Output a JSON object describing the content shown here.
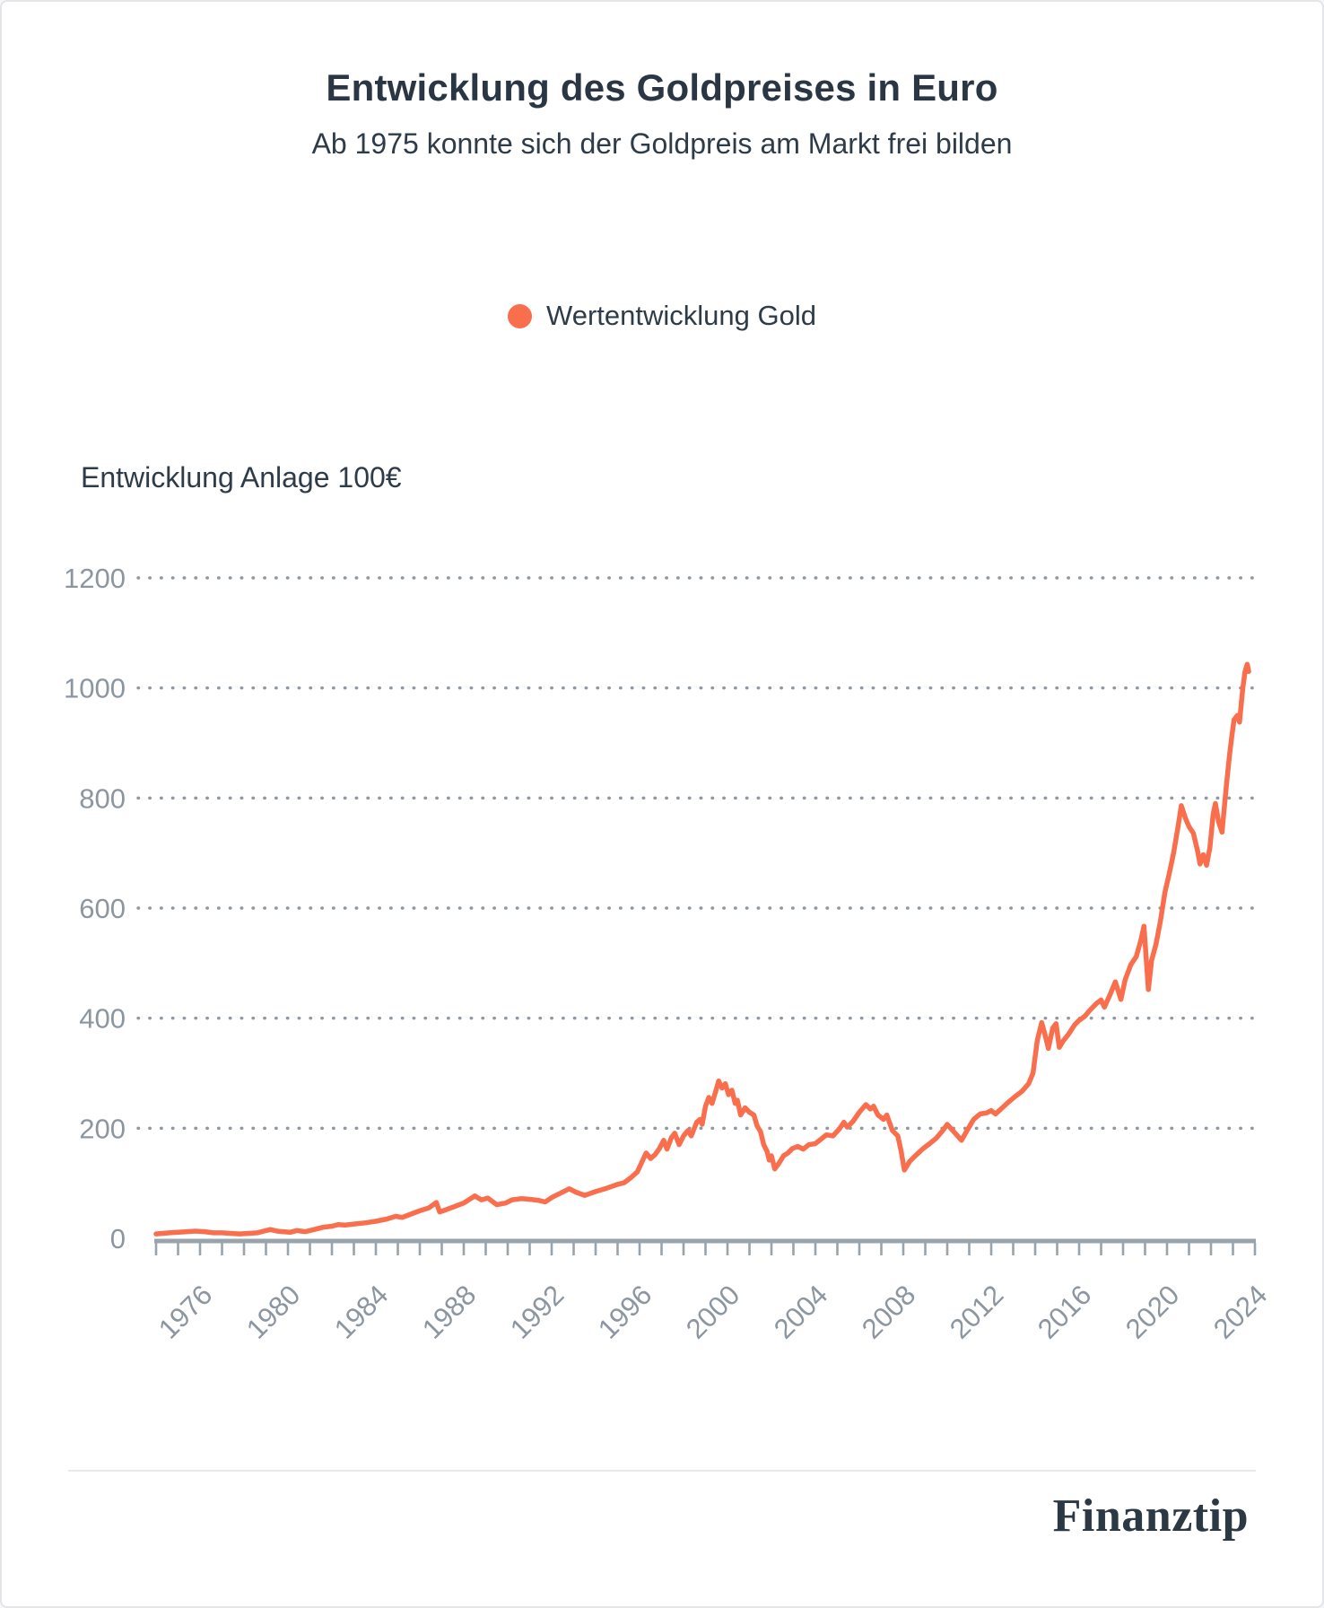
{
  "page": {
    "background": "#ffffff",
    "border_color": "#e3e5e8"
  },
  "header": {
    "title": "Entwicklung des Goldpreises in Euro",
    "subtitle": "Ab 1975 konnte sich der Goldpreis am Markt frei bilden"
  },
  "legend": {
    "items": [
      {
        "label": "Wertentwicklung Gold",
        "color": "#F96E4C"
      }
    ]
  },
  "footer": {
    "brand": "Finanztip"
  },
  "chart_data": {
    "type": "line",
    "title": "Entwicklung des Goldpreises in Euro",
    "subtitle": "Ab 1975 konnte sich der Goldpreis am Markt frei bilden",
    "ylabel": "Entwicklung Anlage 100€",
    "xlabel": "",
    "legend_entries": [
      "Wertentwicklung Gold"
    ],
    "legend_position": "top-center",
    "grid": "horizontal-dotted",
    "line_color": "#F96E4C",
    "grid_color": "#8e98a2",
    "axis_color": "#99a3ac",
    "tick_label_color": "#8c96a1",
    "ylim": [
      0,
      1200
    ],
    "xlim": [
      1975,
      2025
    ],
    "y_ticks": [
      0,
      200,
      400,
      600,
      800,
      1000,
      1200
    ],
    "x_ticks": [
      1976,
      1980,
      1984,
      1988,
      1992,
      1996,
      2000,
      2004,
      2008,
      2012,
      2016,
      2020,
      2024
    ],
    "x_minor_tick_years": [
      1975,
      2025,
      1
    ],
    "series": [
      {
        "name": "Wertentwicklung Gold",
        "points": [
          [
            1975.0,
            8
          ],
          [
            1975.3,
            9
          ],
          [
            1975.6,
            10
          ],
          [
            1976.0,
            11
          ],
          [
            1976.4,
            12
          ],
          [
            1976.8,
            13
          ],
          [
            1977.2,
            12
          ],
          [
            1977.6,
            10
          ],
          [
            1978.0,
            10
          ],
          [
            1978.4,
            9
          ],
          [
            1978.8,
            8
          ],
          [
            1979.2,
            9
          ],
          [
            1979.6,
            10
          ],
          [
            1979.9,
            13
          ],
          [
            1980.2,
            16
          ],
          [
            1980.5,
            13
          ],
          [
            1980.8,
            12
          ],
          [
            1981.1,
            11
          ],
          [
            1981.4,
            14
          ],
          [
            1981.8,
            12
          ],
          [
            1982.2,
            16
          ],
          [
            1982.6,
            20
          ],
          [
            1983.0,
            22
          ],
          [
            1983.3,
            25
          ],
          [
            1983.6,
            24
          ],
          [
            1984.0,
            26
          ],
          [
            1984.5,
            28
          ],
          [
            1985.0,
            31
          ],
          [
            1985.5,
            35
          ],
          [
            1985.9,
            40
          ],
          [
            1986.2,
            38
          ],
          [
            1986.6,
            44
          ],
          [
            1987.0,
            50
          ],
          [
            1987.4,
            55
          ],
          [
            1987.75,
            65
          ],
          [
            1987.9,
            48
          ],
          [
            1988.2,
            52
          ],
          [
            1988.6,
            58
          ],
          [
            1989.0,
            64
          ],
          [
            1989.5,
            77
          ],
          [
            1989.8,
            70
          ],
          [
            1990.1,
            73
          ],
          [
            1990.5,
            61
          ],
          [
            1990.9,
            64
          ],
          [
            1991.2,
            70
          ],
          [
            1991.6,
            72
          ],
          [
            1992.0,
            71
          ],
          [
            1992.4,
            69
          ],
          [
            1992.7,
            66
          ],
          [
            1993.0,
            74
          ],
          [
            1993.4,
            82
          ],
          [
            1993.8,
            90
          ],
          [
            1994.1,
            84
          ],
          [
            1994.5,
            78
          ],
          [
            1995.0,
            85
          ],
          [
            1995.5,
            91
          ],
          [
            1996.0,
            98
          ],
          [
            1996.3,
            101
          ],
          [
            1996.6,
            110
          ],
          [
            1996.9,
            121
          ],
          [
            1997.1,
            138
          ],
          [
            1997.3,
            155
          ],
          [
            1997.5,
            145
          ],
          [
            1997.7,
            152
          ],
          [
            1997.9,
            163
          ],
          [
            1998.1,
            178
          ],
          [
            1998.25,
            162
          ],
          [
            1998.45,
            183
          ],
          [
            1998.6,
            191
          ],
          [
            1998.8,
            170
          ],
          [
            1999.0,
            186
          ],
          [
            1999.2,
            196
          ],
          [
            1999.35,
            186
          ],
          [
            1999.6,
            211
          ],
          [
            1999.75,
            216
          ],
          [
            1999.85,
            207
          ],
          [
            2000.0,
            240
          ],
          [
            2000.15,
            256
          ],
          [
            2000.3,
            245
          ],
          [
            2000.45,
            265
          ],
          [
            2000.6,
            286
          ],
          [
            2000.75,
            273
          ],
          [
            2000.9,
            281
          ],
          [
            2001.05,
            261
          ],
          [
            2001.2,
            269
          ],
          [
            2001.35,
            245
          ],
          [
            2001.45,
            251
          ],
          [
            2001.6,
            224
          ],
          [
            2001.8,
            237
          ],
          [
            2002.0,
            229
          ],
          [
            2002.2,
            224
          ],
          [
            2002.35,
            204
          ],
          [
            2002.5,
            194
          ],
          [
            2002.65,
            170
          ],
          [
            2002.8,
            158
          ],
          [
            2002.9,
            142
          ],
          [
            2003.0,
            150
          ],
          [
            2003.15,
            126
          ],
          [
            2003.35,
            137
          ],
          [
            2003.55,
            150
          ],
          [
            2003.75,
            155
          ],
          [
            2003.95,
            163
          ],
          [
            2004.2,
            167
          ],
          [
            2004.45,
            162
          ],
          [
            2004.7,
            170
          ],
          [
            2005.0,
            172
          ],
          [
            2005.25,
            180
          ],
          [
            2005.5,
            188
          ],
          [
            2005.8,
            186
          ],
          [
            2006.1,
            199
          ],
          [
            2006.3,
            211
          ],
          [
            2006.45,
            202
          ],
          [
            2006.7,
            212
          ],
          [
            2007.0,
            229
          ],
          [
            2007.3,
            243
          ],
          [
            2007.5,
            235
          ],
          [
            2007.65,
            240
          ],
          [
            2007.85,
            224
          ],
          [
            2008.1,
            216
          ],
          [
            2008.25,
            224
          ],
          [
            2008.5,
            196
          ],
          [
            2008.75,
            186
          ],
          [
            2008.9,
            158
          ],
          [
            2009.05,
            124
          ],
          [
            2009.3,
            140
          ],
          [
            2009.6,
            152
          ],
          [
            2009.9,
            163
          ],
          [
            2010.2,
            172
          ],
          [
            2010.5,
            182
          ],
          [
            2010.8,
            196
          ],
          [
            2011.0,
            207
          ],
          [
            2011.2,
            198
          ],
          [
            2011.45,
            187
          ],
          [
            2011.65,
            178
          ],
          [
            2011.9,
            196
          ],
          [
            2012.2,
            216
          ],
          [
            2012.5,
            226
          ],
          [
            2012.8,
            228
          ],
          [
            2013.0,
            232
          ],
          [
            2013.2,
            226
          ],
          [
            2013.5,
            237
          ],
          [
            2013.8,
            248
          ],
          [
            2014.1,
            258
          ],
          [
            2014.4,
            267
          ],
          [
            2014.7,
            281
          ],
          [
            2014.9,
            300
          ],
          [
            2015.1,
            360
          ],
          [
            2015.3,
            392
          ],
          [
            2015.45,
            370
          ],
          [
            2015.6,
            345
          ],
          [
            2015.8,
            382
          ],
          [
            2015.95,
            390
          ],
          [
            2016.1,
            347
          ],
          [
            2016.3,
            360
          ],
          [
            2016.5,
            370
          ],
          [
            2016.8,
            388
          ],
          [
            2017.0,
            396
          ],
          [
            2017.25,
            403
          ],
          [
            2017.5,
            415
          ],
          [
            2017.8,
            427
          ],
          [
            2018.0,
            433
          ],
          [
            2018.15,
            420
          ],
          [
            2018.4,
            442
          ],
          [
            2018.65,
            466
          ],
          [
            2018.9,
            434
          ],
          [
            2019.1,
            470
          ],
          [
            2019.35,
            497
          ],
          [
            2019.6,
            512
          ],
          [
            2019.8,
            540
          ],
          [
            2019.95,
            567
          ],
          [
            2020.15,
            452
          ],
          [
            2020.3,
            505
          ],
          [
            2020.5,
            535
          ],
          [
            2020.7,
            577
          ],
          [
            2020.9,
            628
          ],
          [
            2021.1,
            662
          ],
          [
            2021.3,
            700
          ],
          [
            2021.5,
            748
          ],
          [
            2021.65,
            786
          ],
          [
            2021.85,
            762
          ],
          [
            2022.0,
            748
          ],
          [
            2022.2,
            736
          ],
          [
            2022.4,
            702
          ],
          [
            2022.5,
            680
          ],
          [
            2022.65,
            697
          ],
          [
            2022.8,
            678
          ],
          [
            2022.95,
            710
          ],
          [
            2023.1,
            770
          ],
          [
            2023.2,
            790
          ],
          [
            2023.35,
            756
          ],
          [
            2023.5,
            738
          ],
          [
            2023.7,
            823
          ],
          [
            2023.85,
            880
          ],
          [
            2023.95,
            913
          ],
          [
            2024.05,
            942
          ],
          [
            2024.2,
            950
          ],
          [
            2024.3,
            938
          ],
          [
            2024.45,
            1000
          ],
          [
            2024.55,
            1030
          ],
          [
            2024.65,
            1043
          ],
          [
            2024.72,
            1030
          ]
        ]
      }
    ]
  }
}
